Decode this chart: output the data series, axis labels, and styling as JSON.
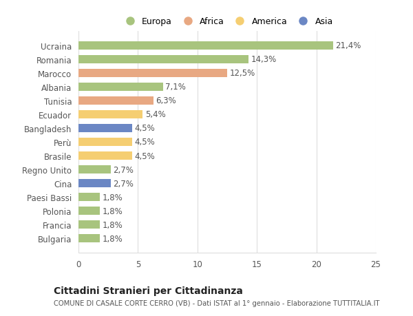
{
  "countries": [
    "Bulgaria",
    "Francia",
    "Polonia",
    "Paesi Bassi",
    "Cina",
    "Regno Unito",
    "Brasile",
    "Perù",
    "Bangladesh",
    "Ecuador",
    "Tunisia",
    "Albania",
    "Marocco",
    "Romania",
    "Ucraina"
  ],
  "values": [
    1.8,
    1.8,
    1.8,
    1.8,
    2.7,
    2.7,
    4.5,
    4.5,
    4.5,
    5.4,
    6.3,
    7.1,
    12.5,
    14.3,
    21.4
  ],
  "labels": [
    "1,8%",
    "1,8%",
    "1,8%",
    "1,8%",
    "2,7%",
    "2,7%",
    "4,5%",
    "4,5%",
    "4,5%",
    "5,4%",
    "6,3%",
    "7,1%",
    "12,5%",
    "14,3%",
    "21,4%"
  ],
  "continents": [
    "Europa",
    "Europa",
    "Europa",
    "Europa",
    "Asia",
    "Europa",
    "America",
    "America",
    "Asia",
    "America",
    "Africa",
    "Europa",
    "Africa",
    "Europa",
    "Europa"
  ],
  "colors": {
    "Europa": "#a8c47e",
    "Africa": "#e8a882",
    "America": "#f5ce72",
    "Asia": "#6b87c4"
  },
  "xlim": [
    0,
    25
  ],
  "xticks": [
    0,
    5,
    10,
    15,
    20,
    25
  ],
  "title": "Cittadini Stranieri per Cittadinanza",
  "subtitle": "COMUNE DI CASALE CORTE CERRO (VB) - Dati ISTAT al 1° gennaio - Elaborazione TUTTITALIA.IT",
  "background_color": "#ffffff",
  "grid_color": "#dddddd",
  "bar_height": 0.62,
  "label_fontsize": 8.5,
  "tick_fontsize": 8.5,
  "legend_items": [
    "Europa",
    "Africa",
    "America",
    "Asia"
  ]
}
